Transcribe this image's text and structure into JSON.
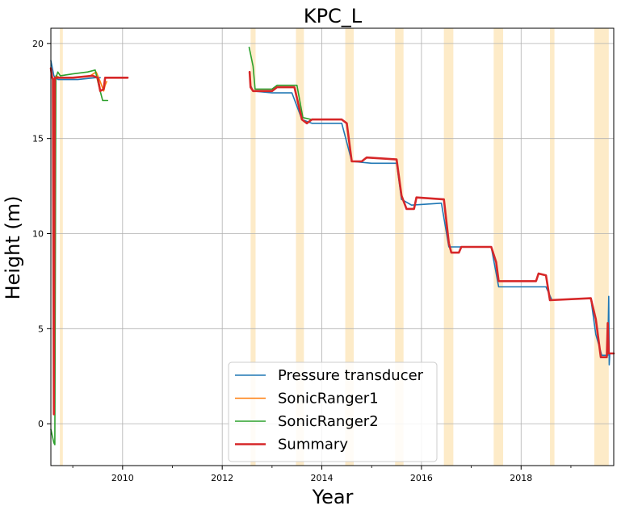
{
  "chart_data": {
    "type": "line",
    "title": "KPC_L",
    "xlabel": "Year",
    "ylabel": "Height (m)",
    "xlim": [
      2008.56,
      2019.86
    ],
    "ylim": [
      -2.2,
      20.8
    ],
    "grid": true,
    "legend_position": "lower-center",
    "x_ticks": [
      "2010",
      "2012",
      "2014",
      "2016",
      "2018"
    ],
    "y_ticks": [
      "0",
      "5",
      "10",
      "15",
      "20"
    ],
    "highlight_color": "#fdebc8",
    "highlight_bands": [
      [
        2008.74,
        2008.8
      ],
      [
        2012.57,
        2012.67
      ],
      [
        2013.48,
        2013.64
      ],
      [
        2014.47,
        2014.64
      ],
      [
        2015.47,
        2015.64
      ],
      [
        2016.45,
        2016.64
      ],
      [
        2017.45,
        2017.64
      ],
      [
        2018.58,
        2018.67
      ],
      [
        2019.47,
        2019.76
      ]
    ],
    "series": [
      {
        "name": "Pressure transducer",
        "color": "#1f77b4",
        "width": 1.6,
        "segments": [
          [
            [
              2008.56,
              19.1
            ],
            [
              2008.62,
              18.3
            ],
            [
              2008.7,
              18.1
            ],
            [
              2009.1,
              18.1
            ],
            [
              2009.45,
              18.2
            ],
            [
              2009.55,
              18.2
            ]
          ],
          [
            [
              2012.57,
              17.8
            ],
            [
              2012.62,
              17.5
            ],
            [
              2013.0,
              17.4
            ],
            [
              2013.4,
              17.4
            ],
            [
              2013.6,
              16.0
            ],
            [
              2013.8,
              15.8
            ],
            [
              2014.4,
              15.8
            ],
            [
              2014.6,
              13.8
            ],
            [
              2015.0,
              13.7
            ],
            [
              2015.5,
              13.7
            ],
            [
              2015.6,
              11.8
            ],
            [
              2015.8,
              11.5
            ],
            [
              2016.4,
              11.6
            ],
            [
              2016.55,
              9.3
            ],
            [
              2017.4,
              9.3
            ],
            [
              2017.55,
              7.2
            ],
            [
              2018.5,
              7.2
            ],
            [
              2018.62,
              6.5
            ],
            [
              2019.4,
              6.6
            ],
            [
              2019.5,
              4.7
            ],
            [
              2019.62,
              3.6
            ],
            [
              2019.74,
              3.6
            ],
            [
              2019.76,
              6.7
            ],
            [
              2019.77,
              3.1
            ],
            [
              2019.78,
              3.7
            ],
            [
              2019.86,
              3.7
            ]
          ]
        ]
      },
      {
        "name": "SonicRanger1",
        "color": "#ff7f0e",
        "width": 1.6,
        "segments": [
          [
            [
              2008.66,
              18.3
            ],
            [
              2008.75,
              18.2
            ],
            [
              2009.0,
              18.2
            ],
            [
              2009.35,
              18.3
            ],
            [
              2009.47,
              18.5
            ],
            [
              2009.55,
              18.0
            ],
            [
              2009.62,
              17.5
            ],
            [
              2009.65,
              17.8
            ],
            [
              2009.68,
              18.0
            ]
          ]
        ]
      },
      {
        "name": "SonicRanger2",
        "color": "#2ca02c",
        "width": 1.6,
        "segments": [
          [
            [
              2008.56,
              -0.3
            ],
            [
              2008.62,
              -1.0
            ],
            [
              2008.64,
              -1.1
            ],
            [
              2008.66,
              18.2
            ],
            [
              2008.7,
              18.5
            ],
            [
              2008.75,
              18.3
            ],
            [
              2009.0,
              18.4
            ],
            [
              2009.3,
              18.5
            ],
            [
              2009.45,
              18.6
            ],
            [
              2009.52,
              17.8
            ],
            [
              2009.6,
              17.0
            ],
            [
              2009.7,
              17.0
            ]
          ],
          [
            [
              2012.54,
              19.8
            ],
            [
              2012.62,
              18.8
            ],
            [
              2012.66,
              17.6
            ],
            [
              2013.0,
              17.6
            ],
            [
              2013.1,
              17.8
            ],
            [
              2013.5,
              17.8
            ],
            [
              2013.62,
              16.1
            ],
            [
              2013.8,
              16.0
            ]
          ]
        ]
      },
      {
        "name": "Summary",
        "color": "#d62728",
        "width": 2.6,
        "segments": [
          [
            [
              2008.56,
              18.7
            ],
            [
              2008.58,
              18.3
            ],
            [
              2008.6,
              18.1
            ],
            [
              2008.62,
              0.5
            ],
            [
              2008.64,
              18.2
            ],
            [
              2008.75,
              18.2
            ],
            [
              2009.0,
              18.2
            ],
            [
              2009.4,
              18.3
            ],
            [
              2009.5,
              18.2
            ],
            [
              2009.55,
              17.5
            ],
            [
              2009.62,
              17.6
            ],
            [
              2009.65,
              18.2
            ],
            [
              2010.1,
              18.2
            ]
          ],
          [
            [
              2012.55,
              18.5
            ],
            [
              2012.57,
              17.7
            ],
            [
              2012.62,
              17.5
            ],
            [
              2013.0,
              17.5
            ],
            [
              2013.1,
              17.7
            ],
            [
              2013.45,
              17.7
            ],
            [
              2013.6,
              16.0
            ],
            [
              2013.7,
              15.8
            ],
            [
              2013.8,
              16.0
            ],
            [
              2014.4,
              16.0
            ],
            [
              2014.5,
              15.8
            ],
            [
              2014.6,
              13.8
            ],
            [
              2014.8,
              13.8
            ],
            [
              2014.9,
              14.0
            ],
            [
              2015.5,
              13.9
            ],
            [
              2015.6,
              12.0
            ],
            [
              2015.7,
              11.3
            ],
            [
              2015.85,
              11.3
            ],
            [
              2015.9,
              11.9
            ],
            [
              2016.45,
              11.8
            ],
            [
              2016.55,
              9.5
            ],
            [
              2016.6,
              9.0
            ],
            [
              2016.75,
              9.0
            ],
            [
              2016.8,
              9.3
            ],
            [
              2017.4,
              9.3
            ],
            [
              2017.5,
              8.5
            ],
            [
              2017.55,
              7.5
            ],
            [
              2018.3,
              7.5
            ],
            [
              2018.35,
              7.9
            ],
            [
              2018.5,
              7.8
            ],
            [
              2018.58,
              6.5
            ],
            [
              2019.4,
              6.6
            ],
            [
              2019.5,
              5.5
            ],
            [
              2019.6,
              3.5
            ],
            [
              2019.72,
              3.5
            ],
            [
              2019.74,
              5.3
            ],
            [
              2019.76,
              3.7
            ],
            [
              2019.86,
              3.7
            ]
          ]
        ]
      }
    ]
  }
}
